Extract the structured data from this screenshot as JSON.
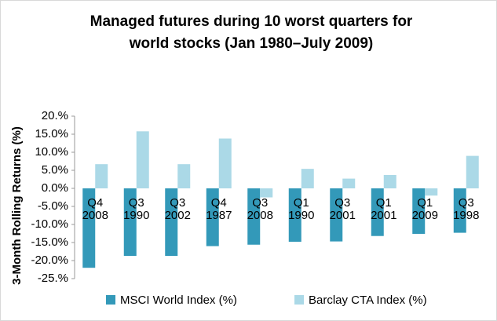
{
  "chart_data": {
    "type": "bar",
    "title": "Managed futures during 10 worst quarters for world stocks (Jan 1980–July 2009)",
    "y_label": "3-Month Rolling Returns (%)",
    "categories": [
      "Q4 2008",
      "Q3 1990",
      "Q3 2002",
      "Q4 1987",
      "Q3 2008",
      "Q1 1990",
      "Q3 2001",
      "Q1 2001",
      "Q1 2009",
      "Q3 1998"
    ],
    "series": [
      {
        "name": "MSCI World Index (%)",
        "color": "#3399b9",
        "values": [
          -22,
          -18.7,
          -18.7,
          -16,
          -15.6,
          -14.8,
          -14.7,
          -13.2,
          -12.6,
          -12.3
        ]
      },
      {
        "name": "Barclay CTA Index (%)",
        "color": "#abd9e7",
        "values": [
          6.7,
          15.8,
          6.7,
          13.8,
          -2.5,
          5.4,
          2.7,
          3.7,
          -2,
          9
        ]
      }
    ],
    "ylim": [
      -25,
      20
    ],
    "yticks": [
      {
        "value": 20,
        "label": "20.%"
      },
      {
        "value": 15,
        "label": "15.0%"
      },
      {
        "value": 10,
        "label": "10.0%"
      },
      {
        "value": 5,
        "label": "5.0%"
      },
      {
        "value": 0,
        "label": "0.0%"
      },
      {
        "value": -5,
        "label": "-5.0%"
      },
      {
        "value": -10,
        "label": "-10.0%"
      },
      {
        "value": -15,
        "label": "-15.0%"
      },
      {
        "value": -20,
        "label": "-20.0%"
      },
      {
        "value": -25,
        "label": "-25.%"
      }
    ],
    "legend": "bottom"
  }
}
